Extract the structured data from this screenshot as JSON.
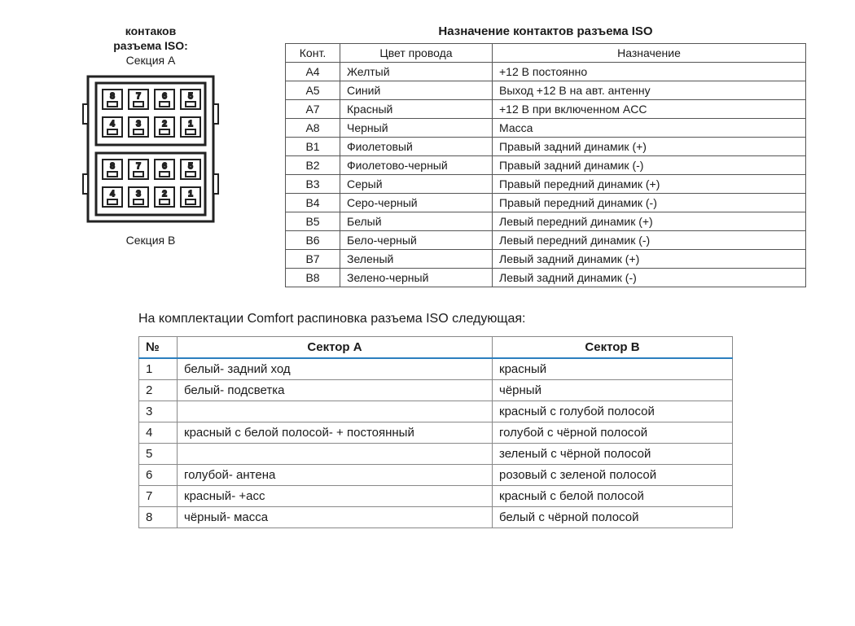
{
  "connector": {
    "title1": "контаков",
    "title2": "разъема ISO:",
    "sectionA": "Секция А",
    "sectionB": "Секция В",
    "pins_top": [
      "8",
      "7",
      "6",
      "5"
    ],
    "pins_top2": [
      "4",
      "3",
      "2",
      "1"
    ],
    "pins_bot": [
      "8",
      "7",
      "6",
      "5"
    ],
    "pins_bot2": [
      "4",
      "3",
      "2",
      "1"
    ],
    "stroke": "#222222",
    "fill": "#ffffff"
  },
  "pin_table": {
    "title": "Назначение контактов разъема ISO",
    "headers": [
      "Конт.",
      "Цвет провода",
      "Назначение"
    ],
    "rows": [
      [
        "A4",
        "Желтый",
        "+12 В постоянно"
      ],
      [
        "A5",
        "Синий",
        "Выход +12 В на авт. антенну"
      ],
      [
        "A7",
        "Красный",
        "+12 В при включенном ACC"
      ],
      [
        "A8",
        "Черный",
        "Масса"
      ],
      [
        "B1",
        "Фиолетовый",
        "Правый задний динамик (+)"
      ],
      [
        "B2",
        "Фиолетово-черный",
        "Правый задний динамик (-)"
      ],
      [
        "B3",
        "Серый",
        "Правый передний динамик (+)"
      ],
      [
        "B4",
        "Серо-черный",
        "Правый передний динамик (-)"
      ],
      [
        "B5",
        "Белый",
        "Левый передний динамик (+)"
      ],
      [
        "B6",
        "Бело-черный",
        "Левый передний динамик (-)"
      ],
      [
        "B7",
        "Зеленый",
        "Левый задний динамик (+)"
      ],
      [
        "B8",
        "Зелено-черный",
        "Левый задний динамик (-)"
      ]
    ]
  },
  "comfort": {
    "caption": "На комплектации Comfort распиновка разъема ISO следующая:",
    "headers": [
      "№",
      "Сектор А",
      "Сектор В"
    ],
    "rows": [
      [
        "1",
        "белый- задний ход",
        "красный"
      ],
      [
        "2",
        "белый- подсветка",
        "чёрный"
      ],
      [
        "3",
        "",
        "красный с голубой полосой"
      ],
      [
        "4",
        "красный с белой полосой- + постоянный",
        "голубой с чёрной полосой"
      ],
      [
        "5",
        "",
        "зеленый с чёрной полосой"
      ],
      [
        "6",
        "голубой- антена",
        "розовый с зеленой полосой"
      ],
      [
        "7",
        "красный- +асс",
        "красный с белой полосой"
      ],
      [
        "8",
        "чёрный- масса",
        "белый с чёрной полосой"
      ]
    ]
  },
  "colors": {
    "border": "#555555",
    "header_underline": "#2b7fbf",
    "text": "#1a1a1a",
    "background": "#ffffff"
  }
}
